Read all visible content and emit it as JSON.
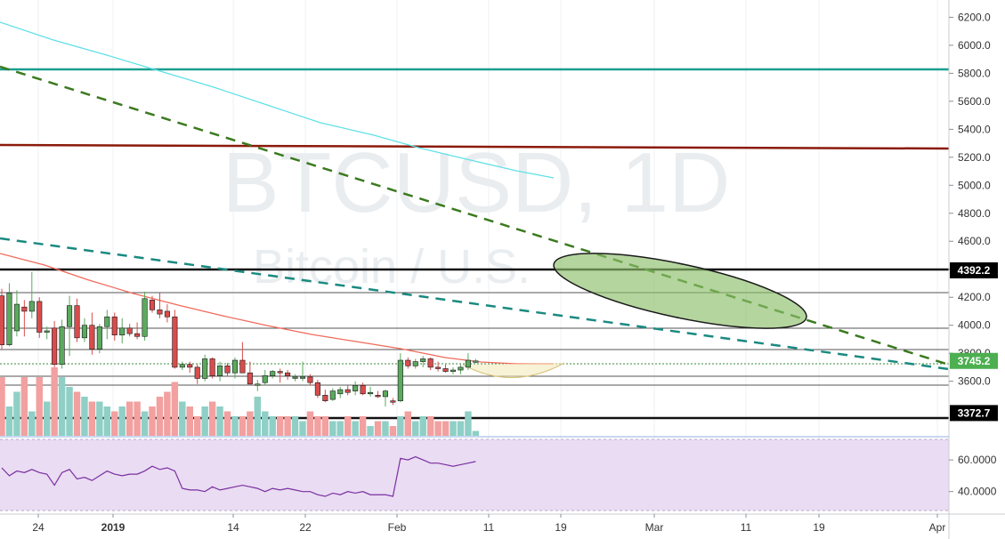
{
  "window": {
    "symbol_watermark": "BTCUSD, 1D",
    "subtitle_watermark": "Bitcoin / U.S."
  },
  "colors": {
    "up": "#5ba95e",
    "down": "#d94c4c",
    "vol_up": "#8fcfc6",
    "vol_down": "#f2a0a0",
    "rsi_bg": "#e9dcf3",
    "rsi_line": "#7b2fa0",
    "sma_fast": "#f06a5a",
    "sma_slow": "#5fe0e8",
    "teal": "#1a9e8f",
    "maroon": "#8b1a0a",
    "green_dash": "#3b7a1f",
    "teal_dash": "#1a8a80"
  },
  "chart_data": {
    "type": "candlestick",
    "symbol": "BTCUSD",
    "interval": "1D",
    "ylim": [
      3210,
      6260
    ],
    "y_ticks": [
      3600,
      3800,
      4000,
      4200,
      4400,
      4600,
      4800,
      5000,
      5200,
      5400,
      5600,
      5800,
      6000,
      6200
    ],
    "x_ticks": [
      "24",
      "2019",
      "14",
      "22",
      "Feb",
      "11",
      "19",
      "Mar",
      "11",
      "19",
      "Apr"
    ],
    "price_badges": [
      {
        "label": "4392.2",
        "value": 4392.2,
        "style": "black"
      },
      {
        "label": "3745.2",
        "value": 3745.2,
        "style": "green"
      },
      {
        "label": "3372.7",
        "value": 3372.7,
        "style": "black"
      }
    ],
    "candles": [
      [
        4210,
        4260,
        3830,
        3860
      ],
      [
        3860,
        4300,
        3850,
        4230
      ],
      [
        3960,
        4250,
        3920,
        4150
      ],
      [
        4130,
        4180,
        3920,
        4100
      ],
      [
        4100,
        4380,
        4050,
        4170
      ],
      [
        4170,
        4200,
        3910,
        3950
      ],
      [
        3950,
        3990,
        3900,
        3960
      ],
      [
        3980,
        4030,
        3700,
        3720
      ],
      [
        3720,
        4040,
        3690,
        3990
      ],
      [
        3990,
        4210,
        3780,
        4140
      ],
      [
        4140,
        4190,
        3880,
        3910
      ],
      [
        3910,
        4050,
        3880,
        4000
      ],
      [
        4000,
        4090,
        3790,
        3830
      ],
      [
        3830,
        4010,
        3800,
        3990
      ],
      [
        3990,
        4110,
        3900,
        4060
      ],
      [
        4060,
        4090,
        3890,
        3930
      ],
      [
        3930,
        4050,
        3870,
        3980
      ],
      [
        3980,
        4010,
        3920,
        3940
      ],
      [
        3940,
        4020,
        3900,
        3920
      ],
      [
        3920,
        4240,
        3890,
        4190
      ],
      [
        4180,
        4210,
        4090,
        4110
      ],
      [
        4110,
        4230,
        4050,
        4080
      ],
      [
        4100,
        4150,
        4020,
        4060
      ],
      [
        4060,
        4110,
        3690,
        3700
      ],
      [
        3700,
        3740,
        3680,
        3720
      ],
      [
        3720,
        3740,
        3660,
        3700
      ],
      [
        3700,
        3720,
        3580,
        3620
      ],
      [
        3620,
        3790,
        3600,
        3760
      ],
      [
        3760,
        3770,
        3620,
        3640
      ],
      [
        3640,
        3740,
        3600,
        3710
      ],
      [
        3710,
        3730,
        3640,
        3660
      ],
      [
        3660,
        3770,
        3620,
        3750
      ],
      [
        3750,
        3880,
        3660,
        3660
      ],
      [
        3660,
        3740,
        3570,
        3580
      ],
      [
        3580,
        3610,
        3530,
        3580
      ],
      [
        3590,
        3680,
        3570,
        3640
      ],
      [
        3640,
        3680,
        3620,
        3670
      ],
      [
        3670,
        3690,
        3590,
        3660
      ],
      [
        3660,
        3680,
        3610,
        3640
      ],
      [
        3630,
        3650,
        3600,
        3630
      ],
      [
        3630,
        3740,
        3600,
        3630
      ],
      [
        3630,
        3650,
        3570,
        3590
      ],
      [
        3590,
        3610,
        3480,
        3500
      ],
      [
        3500,
        3540,
        3450,
        3460
      ],
      [
        3470,
        3550,
        3460,
        3530
      ],
      [
        3510,
        3560,
        3480,
        3540
      ],
      [
        3540,
        3570,
        3500,
        3520
      ],
      [
        3530,
        3600,
        3500,
        3570
      ],
      [
        3570,
        3590,
        3500,
        3510
      ],
      [
        3510,
        3560,
        3490,
        3520
      ],
      [
        3500,
        3530,
        3480,
        3490
      ],
      [
        3490,
        3540,
        3420,
        3530
      ],
      [
        3460,
        3480,
        3430,
        3450
      ],
      [
        3460,
        3800,
        3450,
        3750
      ],
      [
        3750,
        3770,
        3690,
        3710
      ],
      [
        3710,
        3760,
        3690,
        3740
      ],
      [
        3740,
        3780,
        3700,
        3760
      ],
      [
        3760,
        3770,
        3680,
        3700
      ],
      [
        3700,
        3740,
        3670,
        3690
      ],
      [
        3690,
        3720,
        3660,
        3670
      ],
      [
        3670,
        3700,
        3650,
        3680
      ],
      [
        3680,
        3720,
        3650,
        3700
      ],
      [
        3700,
        3800,
        3680,
        3750
      ],
      [
        3745,
        3760,
        3730,
        3745
      ]
    ],
    "volume_pct": [
      60,
      30,
      45,
      60,
      25,
      60,
      35,
      70,
      60,
      50,
      45,
      40,
      35,
      35,
      30,
      25,
      30,
      35,
      35,
      25,
      30,
      40,
      45,
      55,
      35,
      30,
      20,
      30,
      35,
      30,
      25,
      20,
      20,
      25,
      40,
      25,
      20,
      20,
      20,
      20,
      15,
      25,
      20,
      20,
      15,
      15,
      20,
      15,
      20,
      10,
      15,
      15,
      10,
      20,
      25,
      15,
      20,
      20,
      15,
      15,
      15,
      15,
      25,
      5
    ],
    "rsi": {
      "ylim": [
        28,
        73
      ],
      "ticks": [
        40,
        60
      ],
      "values": [
        55,
        50,
        53,
        52,
        54,
        52,
        51,
        44,
        52,
        54,
        48,
        49,
        47,
        50,
        53,
        51,
        50,
        51,
        51,
        53,
        56,
        54,
        55,
        53,
        42,
        41,
        41,
        40,
        43,
        41,
        42,
        43,
        44,
        43,
        42,
        40,
        42,
        41,
        42,
        41,
        40,
        40,
        38,
        37,
        39,
        38,
        40,
        39,
        40,
        38,
        38,
        38,
        37,
        61,
        60,
        62,
        60,
        58,
        58,
        57,
        56,
        57,
        58,
        59
      ]
    }
  }
}
